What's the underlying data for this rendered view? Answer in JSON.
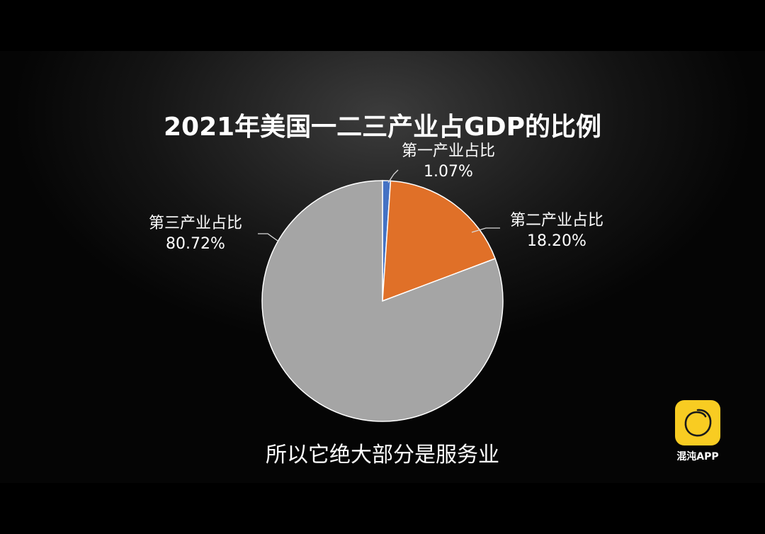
{
  "chart_data": {
    "type": "pie",
    "title": "2021年美国一二三产业占GDP的比例",
    "start_angle_deg": 0,
    "direction": "clockwise",
    "slices": [
      {
        "label": "第一产业占比",
        "value": 1.07,
        "value_label": "1.07%",
        "color": "#4472c4"
      },
      {
        "label": "第二产业占比",
        "value": 18.2,
        "value_label": "18.20%",
        "color": "#e07028"
      },
      {
        "label": "第三产业占比",
        "value": 80.72,
        "value_label": "80.72%",
        "color": "#a5a5a5"
      }
    ]
  },
  "subtitle": "所以它绝大部分是服务业",
  "watermark": {
    "text": "混沌APP",
    "logo_color": "#f8cc22"
  }
}
